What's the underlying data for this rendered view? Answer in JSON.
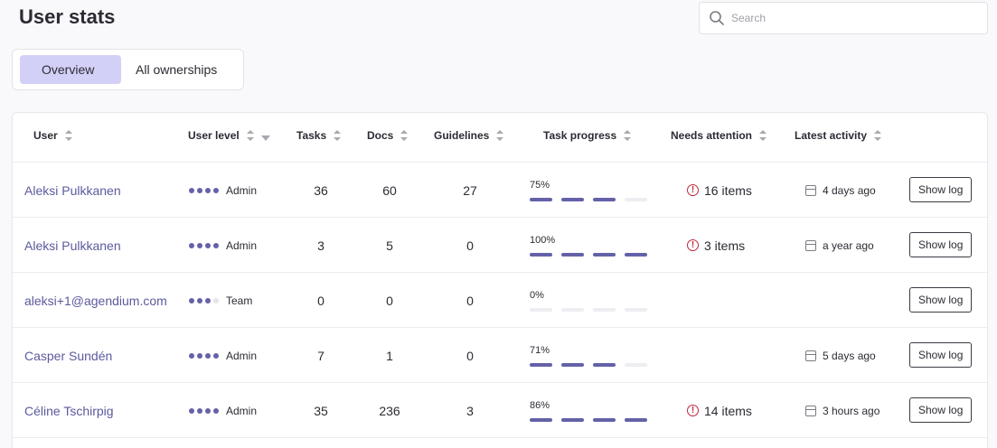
{
  "header": {
    "title": "User stats"
  },
  "search": {
    "placeholder": "Search",
    "value": ""
  },
  "tabs": [
    {
      "label": "Overview",
      "active": true
    },
    {
      "label": "All ownerships",
      "active": false
    }
  ],
  "table": {
    "columns": {
      "user": "User",
      "user_level": "User level",
      "tasks": "Tasks",
      "docs": "Docs",
      "guidelines": "Guidelines",
      "task_progress": "Task progress",
      "needs_attention": "Needs attention",
      "latest_activity": "Latest activity"
    },
    "rows": [
      {
        "user": "Aleksi Pulkkanen",
        "level": "Admin",
        "level_dots": 4,
        "tasks": "36",
        "docs": "60",
        "guidelines": "27",
        "progress_label": "75%",
        "progress_filled_segments": 3,
        "attention": "16 items",
        "activity": "4 days ago",
        "action": "Show log"
      },
      {
        "user": "Aleksi Pulkkanen",
        "level": "Admin",
        "level_dots": 4,
        "tasks": "3",
        "docs": "5",
        "guidelines": "0",
        "progress_label": "100%",
        "progress_filled_segments": 4,
        "attention": "3 items",
        "activity": "a year ago",
        "action": "Show log"
      },
      {
        "user": "aleksi+1@agendium.com",
        "level": "Team",
        "level_dots": 3,
        "tasks": "0",
        "docs": "0",
        "guidelines": "0",
        "progress_label": "0%",
        "progress_filled_segments": 0,
        "attention": "",
        "activity": "",
        "action": "Show log"
      },
      {
        "user": "Casper Sundén",
        "level": "Admin",
        "level_dots": 4,
        "tasks": "7",
        "docs": "1",
        "guidelines": "0",
        "progress_label": "71%",
        "progress_filled_segments": 3,
        "attention": "",
        "activity": "5 days ago",
        "action": "Show log"
      },
      {
        "user": "Céline Tschirpig",
        "level": "Admin",
        "level_dots": 4,
        "tasks": "35",
        "docs": "236",
        "guidelines": "3",
        "progress_label": "86%",
        "progress_filled_segments": 4,
        "attention": "14 items",
        "activity": "3 hours ago",
        "action": "Show log"
      }
    ]
  },
  "colors": {
    "accent": "#6461a8",
    "tab_active_bg": "#d3d0f7",
    "alert": "#c0283b",
    "link": "#5b5a9e"
  },
  "icons": {
    "search": "search-icon",
    "alert": "alert-circle-icon",
    "calendar": "calendar-icon",
    "sort": "sort-icon",
    "filter": "filter-icon"
  }
}
